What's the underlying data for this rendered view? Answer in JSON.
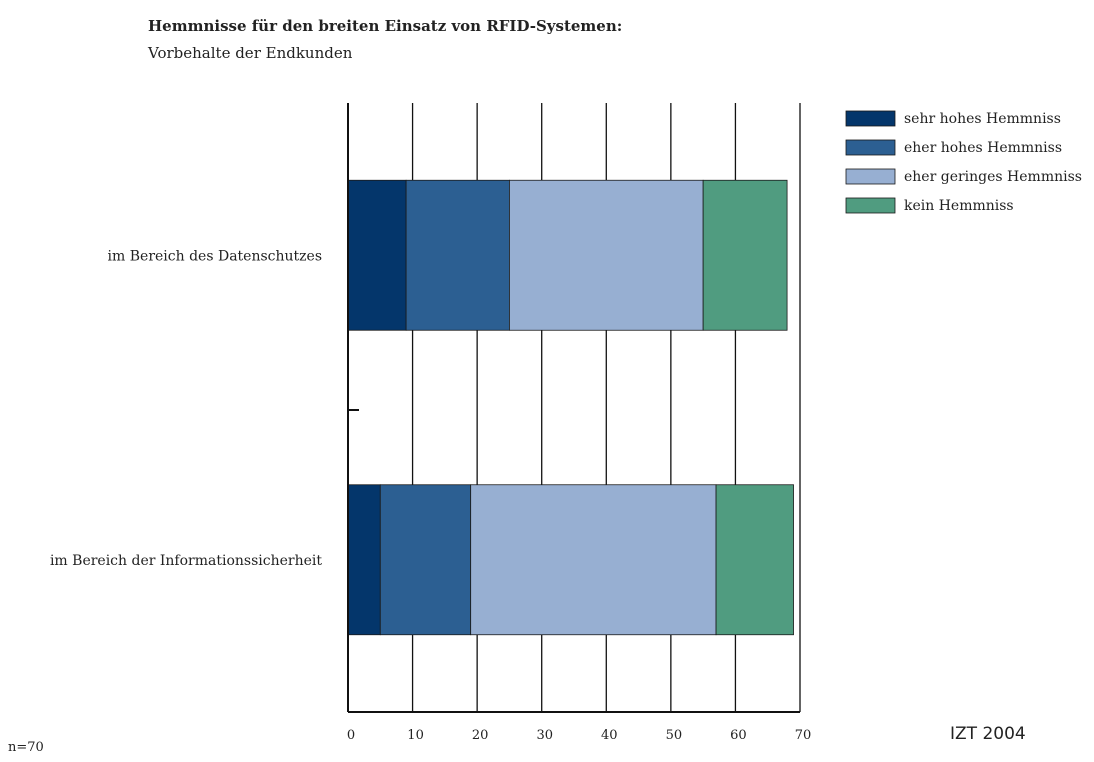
{
  "header": {
    "title": "Hemmnisse für den breiten Einsatz von RFID-Systemen:",
    "subtitle": "Vorbehalte der Endkunden"
  },
  "footer": {
    "sample_note": "n=70",
    "source": "IZT 2004"
  },
  "chart_data": {
    "type": "bar",
    "orientation": "horizontal",
    "stacked": true,
    "categories": [
      "im Bereich des Datenschutzes",
      "im Bereich der Informationssicherheit"
    ],
    "series": [
      {
        "name": "sehr hohes Hemmniss",
        "color": "#04366b",
        "values": [
          9,
          5
        ]
      },
      {
        "name": "eher hohes Hemmniss",
        "color": "#2c5f92",
        "values": [
          16,
          14
        ]
      },
      {
        "name": "eher geringes Hemmniss",
        "color": "#97afd2",
        "values": [
          30,
          38
        ]
      },
      {
        "name": "kein Hemmniss",
        "color": "#509c80",
        "values": [
          13,
          12
        ]
      }
    ],
    "xlim": [
      0,
      70
    ],
    "xticks": [
      "0",
      "10",
      "20",
      "30",
      "40",
      "50",
      "60",
      "70"
    ],
    "grid": true,
    "legend_position": "top-right"
  }
}
